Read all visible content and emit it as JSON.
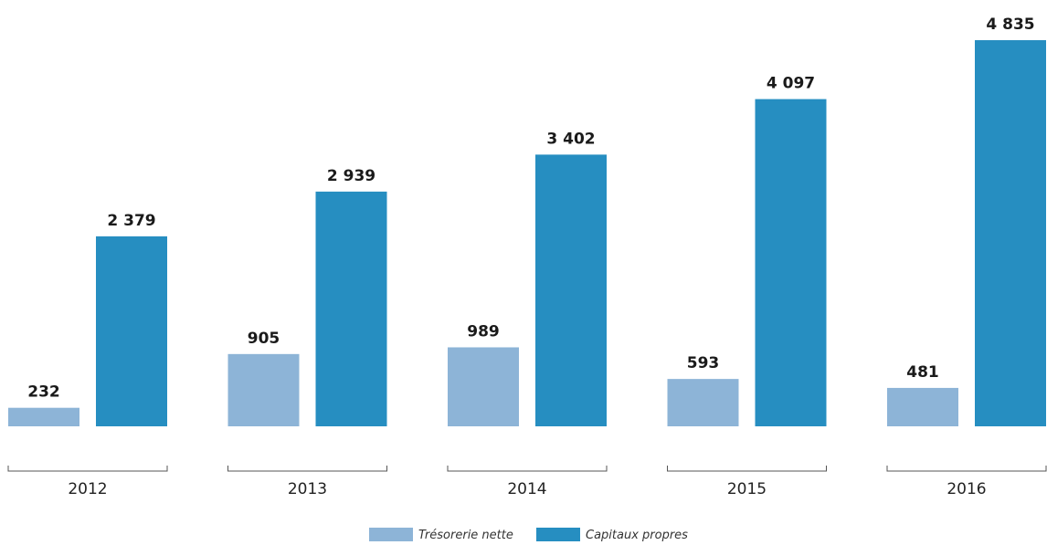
{
  "chart_data": {
    "type": "bar",
    "categories": [
      "2012",
      "2013",
      "2014",
      "2015",
      "2016"
    ],
    "series": [
      {
        "name": "Trésorerie nette",
        "color": "#8db4d7",
        "values": [
          232,
          905,
          989,
          593,
          481
        ],
        "labels": [
          "232",
          "905",
          "989",
          "593",
          "481"
        ]
      },
      {
        "name": "Capitaux propres",
        "color": "#268ec1",
        "values": [
          2379,
          2939,
          3402,
          4097,
          4835
        ],
        "labels": [
          "2 379",
          "2 939",
          "3 402",
          "4 097",
          "4 835"
        ]
      }
    ],
    "title": "",
    "xlabel": "",
    "ylabel": "",
    "ylim": [
      0,
      4835
    ],
    "grid": false,
    "legend": "bottom-center"
  }
}
